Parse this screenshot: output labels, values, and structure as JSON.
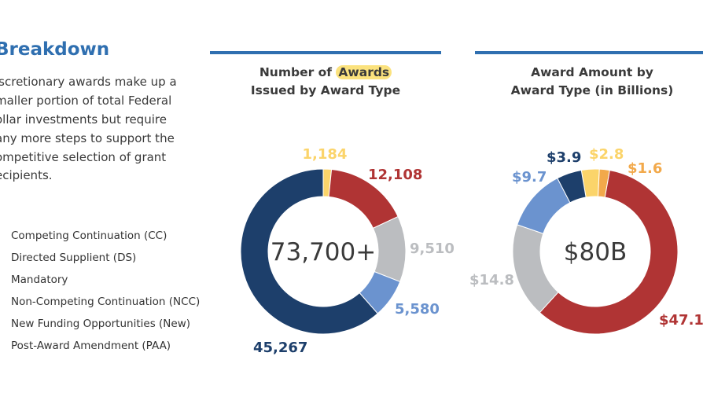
{
  "section": {
    "title": "Breakdown",
    "intro_lines": [
      "iscretionary awards make up a",
      "maller portion of total Federal",
      "ollar investments but require",
      "any more steps to support the",
      "ompetitive selection of grant",
      "ecipients."
    ]
  },
  "legend": [
    "Competing Continuation (CC)",
    "Directed Supplient (DS)",
    "Mandatory",
    "Non-Competing Continuation (NCC)",
    "New Funding Opportunities (New)",
    "Post-Award Amendment (PAA)"
  ],
  "colors": {
    "yellow": "#fbd46a",
    "red": "#b03434",
    "gray": "#bbbdc0",
    "lightblue": "#6b93cf",
    "navy": "#1d3f6b",
    "orange": "#f2a94b",
    "accent": "#2f6fb0",
    "highlight": "#fbe27d"
  },
  "chart_data": [
    {
      "type": "pie",
      "title_parts": [
        "Number of ",
        "Awards",
        "Issued by Award Type"
      ],
      "center_label": "73,700+",
      "slices": [
        {
          "label": "1,184",
          "value": 1184,
          "color": "#fbd46a"
        },
        {
          "label": "12,108",
          "value": 12108,
          "color": "#b03434"
        },
        {
          "label": "9,510",
          "value": 9510,
          "color": "#bbbdc0"
        },
        {
          "label": "5,580",
          "value": 5580,
          "color": "#6b93cf"
        },
        {
          "label": "45,267",
          "value": 45267,
          "color": "#1d3f6b"
        }
      ]
    },
    {
      "type": "pie",
      "title_lines": [
        "Award Amount by",
        "Award Type (in Billions)"
      ],
      "center_label": "$80B",
      "slices": [
        {
          "label": "$2.8",
          "value": 2.8,
          "color": "#fbd46a"
        },
        {
          "label": "$1.6",
          "value": 1.6,
          "color": "#f2a94b"
        },
        {
          "label": "$47.1",
          "value": 47.1,
          "color": "#b03434"
        },
        {
          "label": "$14.8",
          "value": 14.8,
          "color": "#bbbdc0"
        },
        {
          "label": "$9.7",
          "value": 9.7,
          "color": "#6b93cf"
        },
        {
          "label": "$3.9",
          "value": 3.9,
          "color": "#1d3f6b"
        }
      ]
    }
  ]
}
